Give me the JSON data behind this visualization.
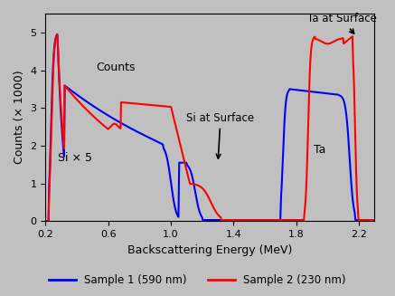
{
  "xlabel": "Backscattering Energy (MeV)",
  "ylabel": "Counts (× 1000)",
  "xlim": [
    0.2,
    2.3
  ],
  "ylim": [
    0.0,
    5.5
  ],
  "xticks": [
    0.2,
    0.6,
    1.0,
    1.4,
    1.8,
    2.2
  ],
  "yticks": [
    0,
    1,
    2,
    3,
    4,
    5
  ],
  "bg_color": "#c0c0c0",
  "line1_color": "blue",
  "line2_color": "red",
  "legend_labels": [
    "Sample 1 (590 nm)",
    "Sample 2 (230 nm)"
  ]
}
